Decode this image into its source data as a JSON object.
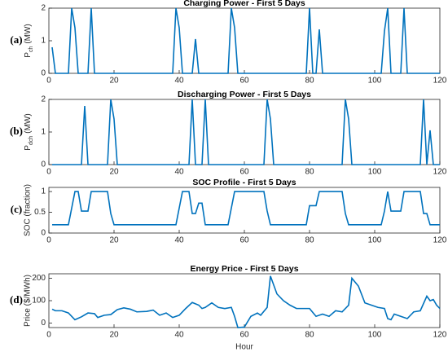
{
  "chart_data": [
    {
      "type": "line",
      "panel": "(a)",
      "title": "Charging Power - First 5 Days",
      "ylabel": "P",
      "ylabel_sub": "ch",
      "ylabel_unit": "(MW)",
      "color": "#0072bd",
      "x": [
        1,
        2,
        6,
        7,
        8,
        9,
        12,
        13,
        14,
        38,
        39,
        40,
        41,
        44,
        45,
        46,
        55,
        56,
        57,
        58,
        79,
        80,
        81,
        82,
        83,
        84,
        102,
        103,
        104,
        105,
        108,
        109,
        110,
        120
      ],
      "values": [
        0.8,
        0,
        0,
        2.0,
        1.4,
        0,
        0,
        2.0,
        0,
        0,
        2.0,
        1.4,
        0,
        0,
        1.05,
        0,
        0,
        2.0,
        1.4,
        0,
        0,
        2.0,
        0,
        0,
        1.35,
        0,
        0,
        1.3,
        2.0,
        0,
        0,
        2.0,
        0,
        0
      ],
      "xlim": [
        0,
        120
      ],
      "xticks": [
        0,
        20,
        40,
        60,
        80,
        100,
        120
      ],
      "ylim": [
        0,
        2
      ],
      "yticks": [
        0,
        1,
        2
      ]
    },
    {
      "type": "line",
      "panel": "(b)",
      "title": "Discharging Power - First 5 Days",
      "ylabel": "P",
      "ylabel_sub": "dch",
      "ylabel_unit": "(MW)",
      "color": "#0072bd",
      "x": [
        1,
        10,
        11,
        12,
        18,
        19,
        20,
        21,
        43,
        44,
        45,
        47,
        48,
        49,
        66,
        67,
        68,
        69,
        90,
        91,
        92,
        93,
        114,
        115,
        116,
        117,
        118,
        120
      ],
      "values": [
        0,
        0,
        1.8,
        0,
        0,
        2.0,
        1.4,
        0,
        0,
        2.0,
        0,
        0,
        2.0,
        0,
        0,
        2.0,
        1.4,
        0,
        0,
        2.0,
        1.4,
        0,
        0,
        2.0,
        0,
        1.05,
        0,
        0
      ],
      "xlim": [
        0,
        120
      ],
      "xticks": [
        0,
        20,
        40,
        60,
        80,
        100,
        120
      ],
      "ylim": [
        0,
        2
      ],
      "yticks": [
        0,
        1,
        2
      ]
    },
    {
      "type": "line",
      "panel": "(c)",
      "title": "SOC Profile - First 5 Days",
      "ylabel": "SOC (fraction)",
      "color": "#0072bd",
      "x": [
        1,
        6,
        7,
        8,
        9,
        10,
        12,
        13,
        18,
        19,
        20,
        39,
        40,
        41,
        43,
        44,
        45,
        46,
        47,
        48,
        55,
        56,
        57,
        66,
        67,
        68,
        79,
        80,
        82,
        83,
        90,
        91,
        92,
        102,
        103,
        104,
        105,
        108,
        109,
        114,
        115,
        116,
        117,
        120
      ],
      "values": [
        0.2,
        0.2,
        0.6,
        1.0,
        1.0,
        0.53,
        0.53,
        1.0,
        1.0,
        0.47,
        0.2,
        0.2,
        0.6,
        1.0,
        1.0,
        0.47,
        0.47,
        0.72,
        0.72,
        0.2,
        0.2,
        0.6,
        1.0,
        1.0,
        0.53,
        0.2,
        0.2,
        0.66,
        0.66,
        1.0,
        1.0,
        0.47,
        0.2,
        0.2,
        0.53,
        1.0,
        0.53,
        0.53,
        1.0,
        1.0,
        0.47,
        0.47,
        0.2,
        0.2
      ],
      "xlim": [
        0,
        120
      ],
      "xticks": [
        0,
        20,
        40,
        60,
        80,
        100,
        120
      ],
      "ylim": [
        0,
        1.1
      ],
      "yticks": [
        0,
        0.5,
        1
      ]
    },
    {
      "type": "line",
      "panel": "(d)",
      "title": "Energy Price - First 5 Days",
      "ylabel": "Price ($/MWh)",
      "xlabel": "Hour",
      "color": "#0072bd",
      "x": [
        1,
        2,
        4,
        6,
        8,
        10,
        12,
        14,
        15,
        17,
        19,
        21,
        23,
        25,
        27,
        30,
        32,
        34,
        36,
        38,
        40,
        42,
        44,
        46,
        47,
        48,
        50,
        52,
        54,
        56,
        57,
        58,
        60,
        62,
        64,
        65,
        67,
        68,
        70,
        72,
        74,
        76,
        80,
        82,
        84,
        86,
        88,
        90,
        92,
        93,
        95,
        97,
        99,
        101,
        103,
        104,
        105,
        106,
        108,
        110,
        112,
        114,
        116,
        117,
        118,
        119,
        120
      ],
      "values": [
        62,
        55,
        55,
        45,
        15,
        28,
        45,
        42,
        25,
        35,
        38,
        60,
        68,
        62,
        50,
        52,
        58,
        35,
        45,
        25,
        35,
        65,
        92,
        80,
        65,
        70,
        90,
        70,
        65,
        70,
        30,
        -20,
        -18,
        30,
        45,
        35,
        70,
        210,
        130,
        100,
        80,
        65,
        65,
        30,
        40,
        30,
        55,
        50,
        80,
        200,
        165,
        90,
        80,
        70,
        65,
        20,
        15,
        40,
        30,
        20,
        50,
        55,
        120,
        100,
        105,
        80,
        65
      ],
      "xlim": [
        0,
        120
      ],
      "xticks": [
        0,
        20,
        40,
        60,
        80,
        100,
        120
      ],
      "ylim": [
        -20,
        220
      ],
      "yticks": [
        0,
        100,
        200
      ]
    }
  ]
}
